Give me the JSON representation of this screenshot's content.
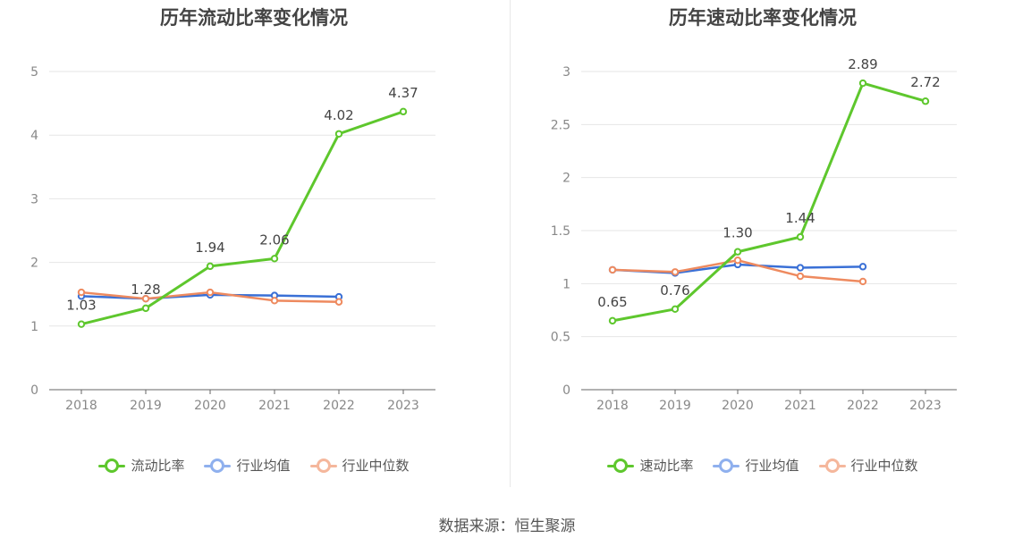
{
  "source": "数据来源：恒生聚源",
  "colors": {
    "series1": "#5ec72d",
    "industry_avg": "#3a70d6",
    "industry_median": "#ee8a5f",
    "legend_avg": "#8fb0ee",
    "legend_median": "#f5b79c"
  },
  "chart_data": [
    {
      "type": "line",
      "title": "历年流动比率变化情况",
      "x": [
        "2018",
        "2019",
        "2020",
        "2021",
        "2022",
        "2023"
      ],
      "ylim": [
        0,
        5
      ],
      "yticks": [
        "0",
        "1",
        "2",
        "3",
        "4",
        "5"
      ],
      "grid": true,
      "legend_position": "bottom",
      "series": [
        {
          "name": "流动比率",
          "values": [
            1.03,
            1.28,
            1.94,
            2.06,
            4.02,
            4.37
          ],
          "labels": [
            "1.03",
            "1.28",
            "1.94",
            "2.06",
            "4.02",
            "4.37"
          ]
        },
        {
          "name": "行业均值",
          "values": [
            1.47,
            1.43,
            1.49,
            1.48,
            1.46,
            null
          ]
        },
        {
          "name": "行业中位数",
          "values": [
            1.53,
            1.43,
            1.53,
            1.4,
            1.38,
            null
          ]
        }
      ]
    },
    {
      "type": "line",
      "title": "历年速动比率变化情况",
      "x": [
        "2018",
        "2019",
        "2020",
        "2021",
        "2022",
        "2023"
      ],
      "ylim": [
        0,
        3
      ],
      "yticks": [
        "0",
        "0.5",
        "1",
        "1.5",
        "2",
        "2.5",
        "3"
      ],
      "grid": true,
      "legend_position": "bottom",
      "series": [
        {
          "name": "速动比率",
          "values": [
            0.65,
            0.76,
            1.3,
            1.44,
            2.89,
            2.72
          ],
          "labels": [
            "0.65",
            "0.76",
            "1.30",
            "1.44",
            "2.89",
            "2.72"
          ]
        },
        {
          "name": "行业均值",
          "values": [
            1.13,
            1.1,
            1.18,
            1.15,
            1.16,
            null
          ]
        },
        {
          "name": "行业中位数",
          "values": [
            1.13,
            1.11,
            1.22,
            1.07,
            1.02,
            null
          ]
        }
      ]
    }
  ]
}
